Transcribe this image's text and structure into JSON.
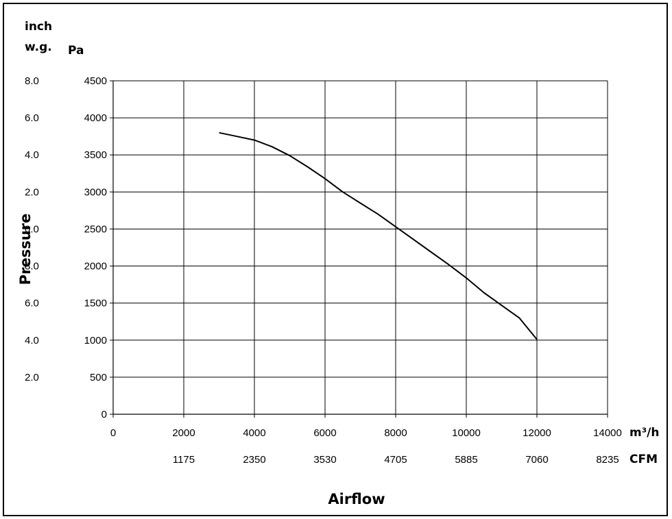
{
  "chart_data": {
    "type": "line",
    "title": "",
    "ylabel": "Pressure",
    "xlabel": "Airflow",
    "y_unit_primary": "Pa",
    "y_unit_secondary_line1": "inch",
    "y_unit_secondary_line2": "w.g.",
    "x_unit_primary": "m³/h",
    "x_unit_secondary": "CFM",
    "xlim": [
      0,
      14000
    ],
    "ylim": [
      0,
      4500
    ],
    "grid": true,
    "x_ticks": [
      0,
      2000,
      4000,
      6000,
      8000,
      10000,
      12000,
      14000
    ],
    "x_tick_labels": [
      "0",
      "2000",
      "4000",
      "6000",
      "8000",
      "10000",
      "12000",
      "14000"
    ],
    "cfm_tick_labels": [
      "1175",
      "2350",
      "3530",
      "4705",
      "5885",
      "7060",
      "8235"
    ],
    "y_ticks": [
      0,
      500,
      1000,
      1500,
      2000,
      2500,
      3000,
      3500,
      4000,
      4500
    ],
    "y_tick_labels": [
      "0",
      "500",
      "1000",
      "1500",
      "2000",
      "2500",
      "3000",
      "3500",
      "4000",
      "4500"
    ],
    "secondary_y_tick_labels": [
      "2.0",
      "4.0",
      "6.0",
      "8.0",
      "0.0",
      "2.0",
      "4.0",
      "6.0",
      "8.0"
    ],
    "series": [
      {
        "x": [
          3000,
          3500,
          4000,
          4500,
          5000,
          5500,
          6000,
          6500,
          7000,
          7500,
          8000,
          8500,
          9000,
          9500,
          10000,
          10500,
          11000,
          11500,
          12000
        ],
        "y": [
          3800,
          3750,
          3700,
          3610,
          3490,
          3340,
          3180,
          3000,
          2850,
          2700,
          2530,
          2360,
          2190,
          2020,
          1840,
          1640,
          1470,
          1300,
          1010
        ]
      }
    ]
  }
}
